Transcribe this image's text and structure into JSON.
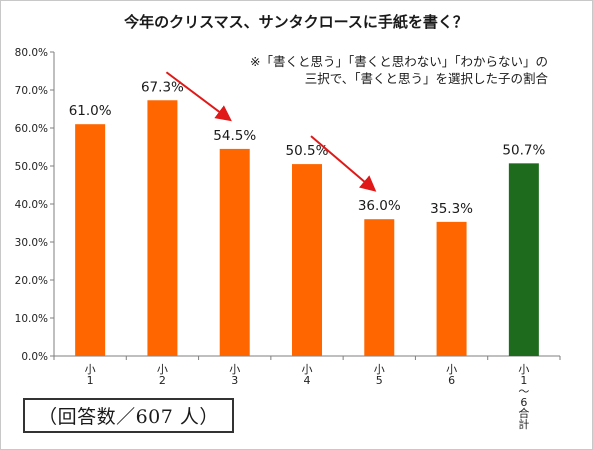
{
  "chart_data": {
    "type": "bar",
    "title": "今年のクリスマス、サンタクロースに手紙を書く？",
    "note_lines": [
      "※「書くと思う」「書くと思わない」「わからない」の",
      "三択で、「書くと思う」を選択した子の割合"
    ],
    "categories": [
      [
        "小",
        "1"
      ],
      [
        "小",
        "2"
      ],
      [
        "小",
        "3"
      ],
      [
        "小",
        "4"
      ],
      [
        "小",
        "5"
      ],
      [
        "小",
        "6"
      ],
      [
        "小",
        "1",
        "〜",
        "6",
        "合",
        "計"
      ]
    ],
    "values": [
      61.0,
      67.3,
      54.5,
      50.5,
      36.0,
      35.3,
      50.7
    ],
    "value_labels": [
      "61.0%",
      "67.3%",
      "54.5%",
      "50.5%",
      "36.0%",
      "35.3%",
      "50.7%"
    ],
    "bar_colors": [
      "#ff6600",
      "#ff6600",
      "#ff6600",
      "#ff6600",
      "#ff6600",
      "#ff6600",
      "#1e6b1e"
    ],
    "ylim": [
      0,
      80
    ],
    "y_ticks": [
      0,
      10,
      20,
      30,
      40,
      50,
      60,
      70,
      80
    ],
    "y_tick_labels": [
      "0.0%",
      "10.0%",
      "20.0%",
      "30.0%",
      "40.0%",
      "50.0%",
      "60.0%",
      "70.0%",
      "80.0%"
    ],
    "grid": false,
    "xlabel": "",
    "ylabel": "",
    "arrows": [
      {
        "from_value": 67.3,
        "from_category": 1,
        "to_category": 2,
        "to_value": 54.5
      },
      {
        "from_value": 50.5,
        "from_category": 3,
        "to_category": 4,
        "to_value": 36.0
      }
    ],
    "arrow_color": "#e01818",
    "respondents_note": "（回答数／607 人）"
  }
}
